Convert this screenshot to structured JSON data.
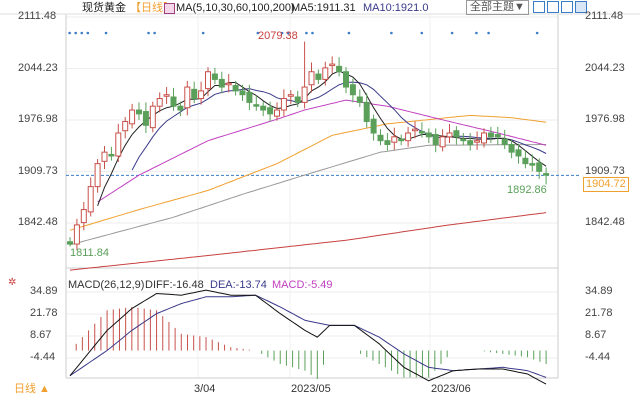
{
  "header": {
    "symbol": "现货黄金",
    "period": "【日线】",
    "ma_label": "MA(5,10,30,60,100,200)",
    "ma5": "MA5:1911.31",
    "ma10": "MA10:1921.0",
    "theme_button": "全部主题▼"
  },
  "colors": {
    "up": "#c8504a",
    "down": "#5aa05a",
    "ma5": "#222222",
    "ma10": "#3a3a8a",
    "ma30": "#c040c0",
    "ma60": "#f0a030",
    "ma100": "#999999",
    "ma200": "#c84040",
    "event": "#3a7cc8",
    "current": "#f0a030"
  },
  "price_axis": {
    "ticks": [
      "2111.48",
      "2044.23",
      "1976.98",
      "1909.73",
      "1842.48"
    ],
    "current": "1904.72"
  },
  "annotations": {
    "high": "2079.38",
    "low": "1811.84",
    "recent_low": "1892.86"
  },
  "macd": {
    "label": "MACD(26,12,9)",
    "diff": "DIFF:-16.48",
    "dea": "DEA:-13.74",
    "macd": "MACD:-5.49",
    "ticks": [
      "34.89",
      "21.78",
      "8.67",
      "-4.44"
    ]
  },
  "x_axis": {
    "labels": [
      "3/04",
      "2023/05",
      "2023/06"
    ]
  },
  "footer": {
    "period_button": "日线 ▲"
  },
  "chart_data": {
    "type": "candlestick",
    "ylim": [
      1842.48,
      2111.48
    ],
    "closes": [
      1815,
      1840,
      1860,
      1890,
      1920,
      1935,
      1930,
      1960,
      1975,
      1990,
      1985,
      1970,
      1995,
      2005,
      2010,
      1995,
      1990,
      2020,
      2005,
      2015,
      2040,
      2030,
      2020,
      2025,
      2015,
      2010,
      2000,
      1995,
      1990,
      1985,
      1990,
      2005,
      2010,
      2000,
      2020,
      2040,
      2030,
      2045,
      2050,
      2040,
      2020,
      2010,
      2000,
      1975,
      1960,
      1950,
      1945,
      1955,
      1950,
      1960,
      1965,
      1960,
      1955,
      1945,
      1955,
      1960,
      1955,
      1950,
      1945,
      1950,
      1960,
      1955,
      1955,
      1945,
      1935,
      1930,
      1920,
      1918,
      1910,
      1905
    ],
    "events": [
      0,
      1,
      2,
      3,
      6,
      13,
      14,
      22,
      31,
      35,
      36,
      39,
      40,
      46,
      53,
      58,
      63,
      67,
      69,
      77
    ],
    "ma30": [
      [
        4,
        1870
      ],
      [
        10,
        1905
      ],
      [
        20,
        1950
      ],
      [
        30,
        1978
      ],
      [
        34,
        1990
      ],
      [
        40,
        2003
      ],
      [
        46,
        1995
      ],
      [
        55,
        1975
      ],
      [
        62,
        1960
      ],
      [
        69,
        1944
      ]
    ],
    "ma60": [
      [
        0,
        1833
      ],
      [
        10,
        1860
      ],
      [
        20,
        1885
      ],
      [
        30,
        1920
      ],
      [
        38,
        1957
      ],
      [
        46,
        1972
      ],
      [
        58,
        1983
      ],
      [
        64,
        1980
      ],
      [
        69,
        1974
      ]
    ],
    "ma100": [
      [
        0,
        1814
      ],
      [
        15,
        1850
      ],
      [
        25,
        1880
      ],
      [
        34,
        1905
      ],
      [
        45,
        1935
      ],
      [
        52,
        1944
      ],
      [
        69,
        1945
      ]
    ],
    "ma200": [
      [
        0,
        1781
      ],
      [
        20,
        1800
      ],
      [
        40,
        1820
      ],
      [
        55,
        1840
      ],
      [
        69,
        1856
      ]
    ],
    "diff": [
      [
        0,
        -15
      ],
      [
        6,
        12
      ],
      [
        10,
        25
      ],
      [
        14,
        34
      ],
      [
        18,
        33
      ],
      [
        22,
        36
      ],
      [
        26,
        33
      ],
      [
        30,
        33
      ],
      [
        34,
        22
      ],
      [
        38,
        12
      ],
      [
        40,
        8
      ],
      [
        42,
        15
      ],
      [
        46,
        15
      ],
      [
        50,
        4
      ],
      [
        54,
        -10
      ],
      [
        58,
        -18
      ],
      [
        62,
        -12
      ],
      [
        66,
        -11
      ],
      [
        70,
        -11
      ],
      [
        74,
        -14
      ],
      [
        77,
        -20
      ]
    ],
    "dea": [
      [
        0,
        -15
      ],
      [
        6,
        0
      ],
      [
        10,
        12
      ],
      [
        14,
        22
      ],
      [
        18,
        28
      ],
      [
        22,
        32
      ],
      [
        26,
        32
      ],
      [
        30,
        33
      ],
      [
        34,
        26
      ],
      [
        38,
        18
      ],
      [
        42,
        15
      ],
      [
        46,
        15
      ],
      [
        50,
        8
      ],
      [
        54,
        -2
      ],
      [
        58,
        -10
      ],
      [
        62,
        -12
      ],
      [
        66,
        -11
      ],
      [
        70,
        -10
      ],
      [
        74,
        -12
      ],
      [
        77,
        -16
      ]
    ]
  }
}
